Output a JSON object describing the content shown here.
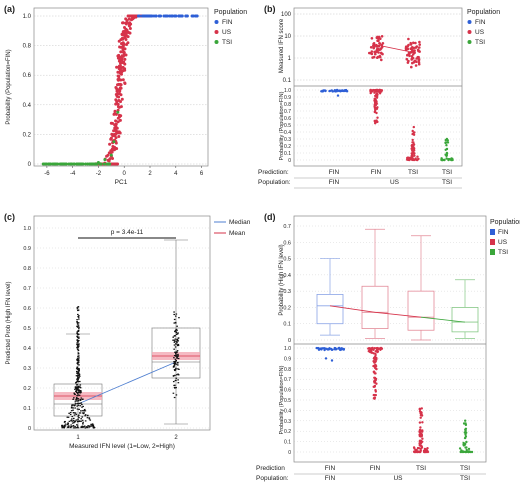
{
  "colors": {
    "fin": "#2e5fd6",
    "us": "#d6334a",
    "tsi": "#3aa63a",
    "black": "#111111",
    "grid": "#b8b8b8",
    "axis": "#555555",
    "median_line": "#4f7fd0",
    "mean_fill": "#f2a9b4",
    "box_fin": "#8aa4e6",
    "box_us": "#e38a98",
    "box_tsi": "#86c886"
  },
  "chart_data": [
    {
      "panel_label": "(a)",
      "type": "scatter",
      "xlabel": "PC1",
      "ylabel": "Probability (Population=FIN)",
      "xlim": [
        -7,
        6.5
      ],
      "ylim": [
        0,
        1.0
      ],
      "xticks": [
        "-6",
        "-4",
        "-2",
        "0",
        "2",
        "4",
        "6"
      ],
      "yticks": [
        "0",
        "0.2",
        "0.4",
        "0.6",
        "0.8",
        "1.0"
      ],
      "legend_title": "Population",
      "legend": [
        "FIN",
        "US",
        "TSI"
      ],
      "series": [
        {
          "name": "FIN",
          "x": [
            1.2,
            1.6,
            2.0,
            2.4,
            2.8,
            3.2,
            3.6,
            4.0,
            4.4,
            4.8,
            5.2,
            5.6
          ],
          "y": [
            1,
            1,
            1,
            1,
            1,
            1,
            1,
            1,
            1,
            1,
            1,
            1
          ]
        },
        {
          "name": "US",
          "x": [
            -2.0,
            -1.6,
            -1.3,
            -1.0,
            -0.8,
            -0.6,
            -0.5,
            -0.4,
            -0.3,
            -0.2,
            -0.1,
            0.0,
            0.1,
            0.2,
            0.4,
            0.6,
            0.9,
            1.3,
            1.8
          ],
          "y": [
            0.0,
            0.02,
            0.05,
            0.1,
            0.18,
            0.28,
            0.4,
            0.52,
            0.6,
            0.7,
            0.78,
            0.85,
            0.9,
            0.95,
            0.98,
            1.0,
            1.0,
            1.0,
            1.0
          ]
        },
        {
          "name": "TSI",
          "x": [
            -6.2,
            -5.5,
            -5.0,
            -4.5,
            -4.0,
            -3.5,
            -3.0,
            -2.5,
            -2.0,
            -1.5,
            -1.0,
            -0.8,
            -0.5
          ],
          "y": [
            0,
            0,
            0,
            0,
            0,
            0,
            0,
            0,
            0.01,
            0.03,
            0.06,
            0.15,
            0.35
          ]
        }
      ]
    },
    {
      "panel_label": "(b)",
      "type": "scatter",
      "top_ylabel": "Measured IFN score",
      "top_yticks": [
        "0.1",
        "1",
        "10",
        "100"
      ],
      "top_scale": "log",
      "bottom_ylabel": "Probability (Population=FIN)",
      "bottom_yticks": [
        "0",
        "0.1",
        "0.2",
        "0.3",
        "0.4",
        "0.5",
        "0.6",
        "0.7",
        "0.8",
        "0.9",
        "1.0"
      ],
      "legend_title": "Population",
      "legend": [
        "FIN",
        "US",
        "TSI"
      ],
      "row_titles": [
        "Prediction:",
        "Population:"
      ],
      "prediction_labels": [
        "FIN",
        "FIN",
        "TSI",
        "TSI"
      ],
      "population_labels": [
        "FIN",
        "US",
        "TSI"
      ],
      "mean_ifn": [
        4.0,
        1.8
      ]
    },
    {
      "panel_label": "(c)",
      "type": "box",
      "xlabel": "Measured IFN level (1=Low, 2=High)",
      "ylabel": "Predicted Prob (High IFN level)",
      "categories": [
        "1",
        "2"
      ],
      "ylim": [
        0,
        1.0
      ],
      "yticks": [
        "0",
        "0.1",
        "0.2",
        "0.3",
        "0.4",
        "0.5",
        "0.6",
        "0.7",
        "0.8",
        "0.9",
        "1.0"
      ],
      "legend": [
        "Median",
        "Mean"
      ],
      "annotation": "p = 3.4e-11",
      "median": [
        0.12,
        0.33
      ],
      "mean": [
        0.16,
        0.36
      ],
      "box_q1": [
        0.06,
        0.25
      ],
      "box_q3": [
        0.22,
        0.5
      ],
      "whisker_low": [
        0.0,
        0.02
      ],
      "whisker_high": [
        0.47,
        0.94
      ]
    },
    {
      "panel_label": "(d)",
      "type": "box",
      "top_ylabel": "Probability (High IFN level)",
      "top_yticks": [
        "0",
        "0.1",
        "0.2",
        "0.3",
        "0.4",
        "0.5",
        "0.6",
        "0.7"
      ],
      "bottom_ylabel": "Probability (Population=FIN)",
      "bottom_yticks": [
        "0",
        "0.1",
        "0.2",
        "0.3",
        "0.4",
        "0.5",
        "0.6",
        "0.7",
        "0.8",
        "0.9",
        "1.0"
      ],
      "legend_title": "Population",
      "legend": [
        "FIN",
        "US",
        "TSI"
      ],
      "row_titles": [
        "Prediction",
        "Population:"
      ],
      "prediction_labels": [
        "FIN",
        "FIN",
        "TSI",
        "TSI"
      ],
      "population_labels": [
        "FIN",
        "US",
        "TSI"
      ],
      "box_median": [
        0.21,
        0.17,
        0.14,
        0.11
      ],
      "box_q1": [
        0.1,
        0.07,
        0.06,
        0.05
      ],
      "box_q3": [
        0.28,
        0.33,
        0.3,
        0.2
      ],
      "whisker_low": [
        0.03,
        0.01,
        0.0,
        0.01
      ],
      "whisker_high": [
        0.5,
        0.68,
        0.64,
        0.37
      ]
    }
  ]
}
